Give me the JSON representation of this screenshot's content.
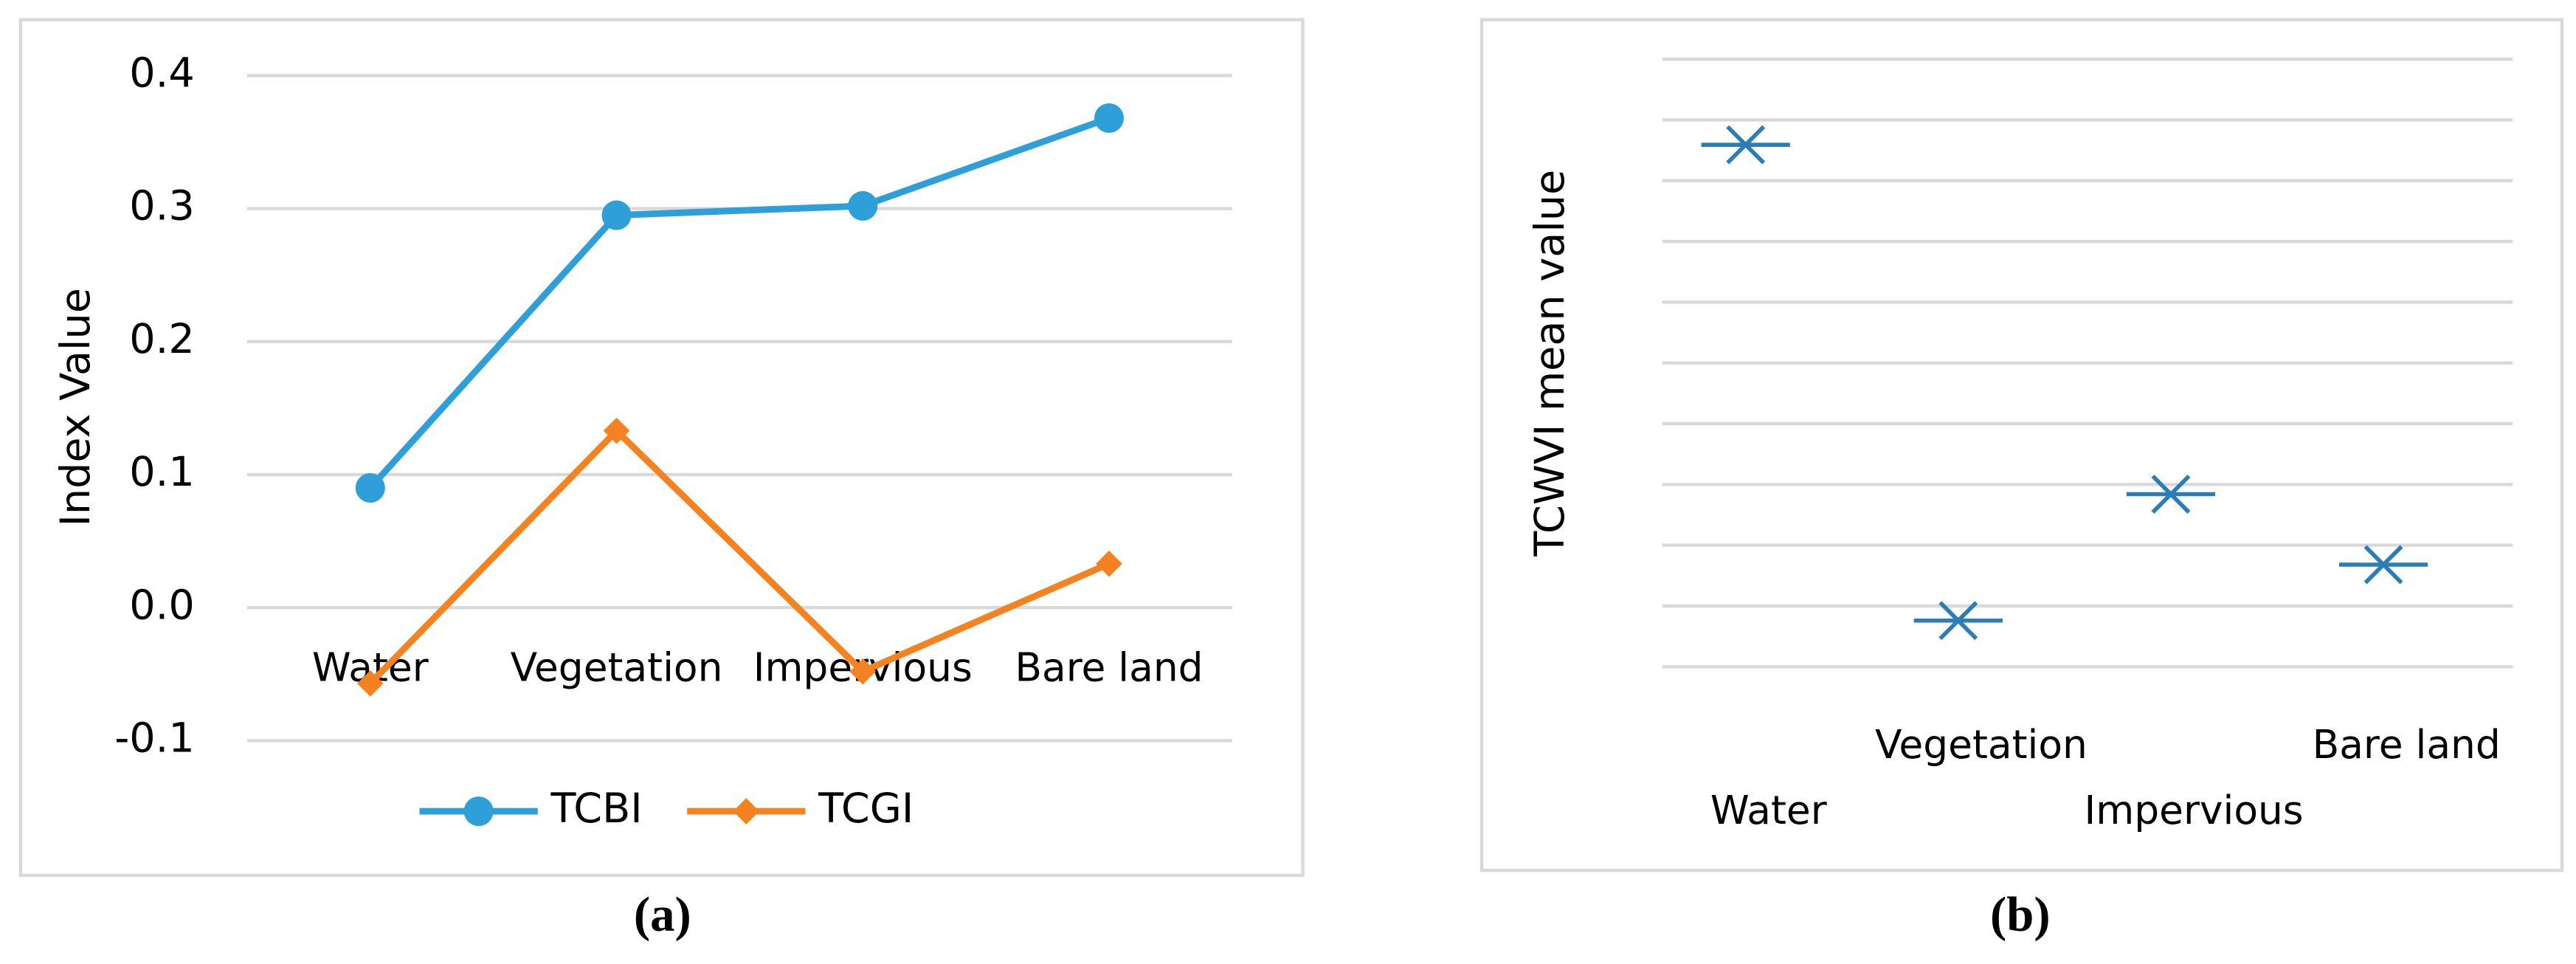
{
  "chart_data": [
    {
      "type": "line",
      "caption": "(a)",
      "y_label": "Index Value",
      "categories": [
        "Water",
        "Vegetation",
        "Impervious",
        "Bare land"
      ],
      "series": [
        {
          "name": "TCBI",
          "color": "#2e9fd8",
          "marker": "circle",
          "values": [
            0.09,
            0.295,
            0.302,
            0.368
          ]
        },
        {
          "name": "TCGI",
          "color": "#f58220",
          "marker": "diamond",
          "values": [
            -0.057,
            0.133,
            -0.048,
            0.033
          ]
        }
      ],
      "ylim": [
        -0.1,
        0.4
      ],
      "yticks": [
        {
          "value": -0.1,
          "label": "-0.1"
        },
        {
          "value": 0,
          "label": "0.0"
        },
        0.1,
        0.2,
        0.3,
        0.4
      ],
      "grid": true,
      "legend": "bottom"
    },
    {
      "type": "scatter",
      "caption": "(b)",
      "y_label": "TCWVI mean value",
      "categories": [
        "Water",
        "Vegetation",
        "Impervious",
        "Bare land"
      ],
      "series": [
        {
          "name": "TCWVI",
          "color": "#2a7db5",
          "marker": "x",
          "values": [
            8.59,
            0.76,
            2.84,
            1.68
          ]
        }
      ],
      "ylim": [
        0,
        10
      ],
      "yticks": [
        0,
        1,
        2,
        3,
        4,
        5,
        6,
        7,
        8,
        9,
        10
      ],
      "tick_labels": false,
      "grid": true,
      "legend": "none"
    }
  ]
}
